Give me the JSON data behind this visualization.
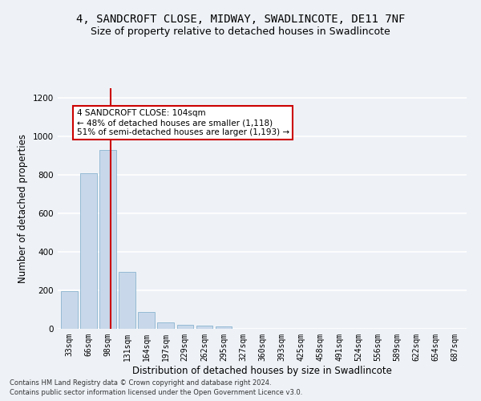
{
  "title1": "4, SANDCROFT CLOSE, MIDWAY, SWADLINCOTE, DE11 7NF",
  "title2": "Size of property relative to detached houses in Swadlincote",
  "xlabel": "Distribution of detached houses by size in Swadlincote",
  "ylabel": "Number of detached properties",
  "footer1": "Contains HM Land Registry data © Crown copyright and database right 2024.",
  "footer2": "Contains public sector information licensed under the Open Government Licence v3.0.",
  "annotation_title": "4 SANDCROFT CLOSE: 104sqm",
  "annotation_line1": "← 48% of detached houses are smaller (1,118)",
  "annotation_line2": "51% of semi-detached houses are larger (1,193) →",
  "bar_color": "#c8d8ea",
  "bar_edge_color": "#7aaac8",
  "vline_color": "#cc0000",
  "vline_x": 2.15,
  "annotation_box_color": "#ffffff",
  "annotation_box_edge": "#cc0000",
  "categories": [
    "33sqm",
    "66sqm",
    "98sqm",
    "131sqm",
    "164sqm",
    "197sqm",
    "229sqm",
    "262sqm",
    "295sqm",
    "327sqm",
    "360sqm",
    "393sqm",
    "425sqm",
    "458sqm",
    "491sqm",
    "524sqm",
    "556sqm",
    "589sqm",
    "622sqm",
    "654sqm",
    "687sqm"
  ],
  "values": [
    195,
    810,
    930,
    295,
    88,
    35,
    20,
    18,
    12,
    0,
    0,
    0,
    0,
    0,
    0,
    0,
    0,
    0,
    0,
    0,
    0
  ],
  "ylim": [
    0,
    1250
  ],
  "yticks": [
    0,
    200,
    400,
    600,
    800,
    1000,
    1200
  ],
  "bg_color": "#eef2f7",
  "grid_color": "#ffffff",
  "title_fontsize": 10,
  "subtitle_fontsize": 9,
  "tick_fontsize": 7,
  "footer_fontsize": 6
}
